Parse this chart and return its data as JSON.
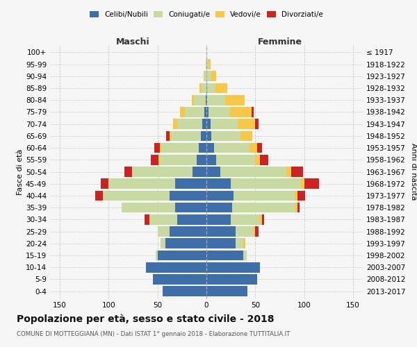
{
  "age_groups": [
    "0-4",
    "5-9",
    "10-14",
    "15-19",
    "20-24",
    "25-29",
    "30-34",
    "35-39",
    "40-44",
    "45-49",
    "50-54",
    "55-59",
    "60-64",
    "65-69",
    "70-74",
    "75-79",
    "80-84",
    "85-89",
    "90-94",
    "95-99",
    "100+"
  ],
  "birth_years": [
    "2013-2017",
    "2008-2012",
    "2003-2007",
    "1998-2002",
    "1993-1997",
    "1988-1992",
    "1983-1987",
    "1978-1982",
    "1973-1977",
    "1968-1972",
    "1963-1967",
    "1958-1962",
    "1953-1957",
    "1948-1952",
    "1943-1947",
    "1938-1942",
    "1933-1937",
    "1928-1932",
    "1923-1927",
    "1918-1922",
    "≤ 1917"
  ],
  "maschi": {
    "celibi": [
      45,
      55,
      62,
      50,
      42,
      38,
      30,
      32,
      38,
      32,
      14,
      10,
      8,
      6,
      4,
      2,
      1,
      0,
      0,
      0,
      0
    ],
    "coniugati": [
      0,
      0,
      0,
      2,
      5,
      12,
      28,
      55,
      68,
      68,
      62,
      38,
      38,
      30,
      26,
      20,
      12,
      5,
      2,
      1,
      0
    ],
    "vedovi": [
      0,
      0,
      0,
      0,
      0,
      0,
      0,
      0,
      0,
      0,
      0,
      1,
      2,
      2,
      4,
      5,
      2,
      2,
      1,
      0,
      0
    ],
    "divorziati": [
      0,
      0,
      0,
      0,
      0,
      0,
      5,
      0,
      8,
      8,
      8,
      8,
      5,
      3,
      0,
      0,
      0,
      0,
      0,
      0,
      0
    ]
  },
  "femmine": {
    "nubili": [
      42,
      52,
      55,
      38,
      30,
      30,
      25,
      26,
      28,
      25,
      14,
      10,
      8,
      5,
      4,
      2,
      1,
      1,
      0,
      0,
      0
    ],
    "coniugate": [
      0,
      0,
      0,
      3,
      8,
      18,
      30,
      65,
      62,
      72,
      68,
      40,
      36,
      30,
      28,
      22,
      18,
      8,
      5,
      2,
      0
    ],
    "vedove": [
      0,
      0,
      0,
      0,
      2,
      2,
      2,
      2,
      3,
      3,
      5,
      5,
      8,
      12,
      18,
      22,
      20,
      12,
      5,
      2,
      0
    ],
    "divorziate": [
      0,
      0,
      0,
      0,
      0,
      3,
      2,
      2,
      8,
      15,
      12,
      8,
      5,
      0,
      3,
      2,
      0,
      0,
      0,
      0,
      0
    ]
  },
  "colors": {
    "celibi_nubili": "#3e6fa8",
    "coniugati": "#c8d9a2",
    "vedovi": "#f5c84a",
    "divorziati": "#cc2222"
  },
  "xlim": 160,
  "title": "Popolazione per età, sesso e stato civile - 2018",
  "subtitle": "COMUNE DI MOTTEGGIANA (MN) - Dati ISTAT 1° gennaio 2018 - Elaborazione TUTTITALIA.IT",
  "ylabel_left": "Fasce di età",
  "ylabel_right": "Anni di nascita",
  "xlabel_maschi": "Maschi",
  "xlabel_femmine": "Femmine",
  "bg_color": "#f5f5f5",
  "grid_color": "#cccccc"
}
